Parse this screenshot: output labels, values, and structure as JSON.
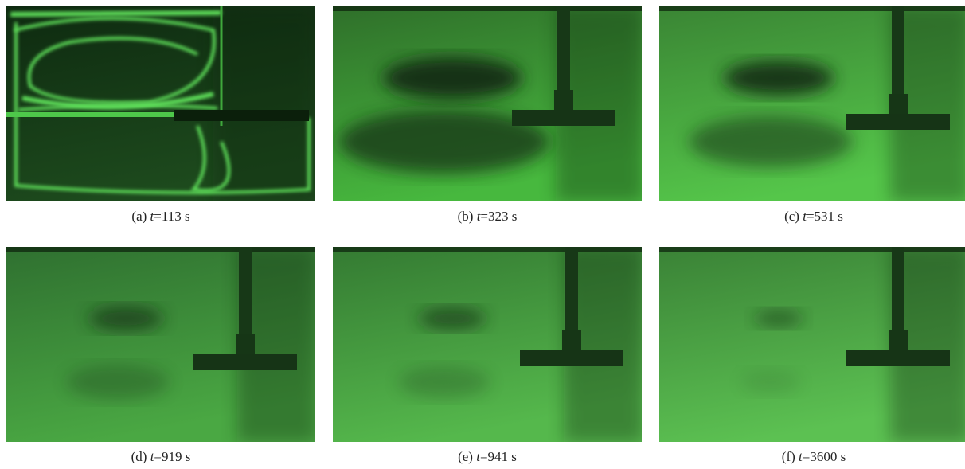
{
  "panels": [
    {
      "letter": "(a)",
      "variable": "t",
      "rest": "=113 s"
    },
    {
      "letter": "(b)",
      "variable": "t",
      "rest": "=323 s"
    },
    {
      "letter": "(c)",
      "variable": "t",
      "rest": "=531 s"
    },
    {
      "letter": "(d)",
      "variable": "t",
      "rest": "=919 s"
    },
    {
      "letter": "(e)",
      "variable": "t",
      "rest": "=941 s"
    },
    {
      "letter": "(f)",
      "variable": "t",
      "rest": "=3600 s"
    }
  ]
}
